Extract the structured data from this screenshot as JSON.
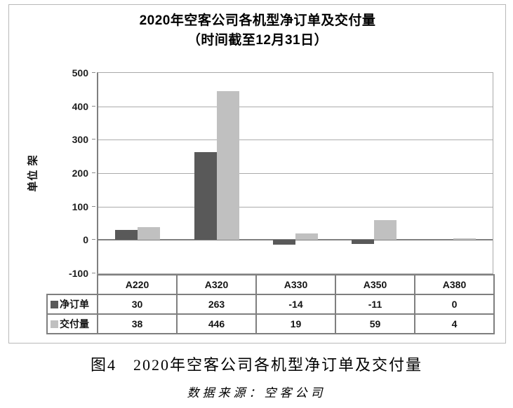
{
  "chart": {
    "title_line1": "2020年空客公司各机型净订单及交付量",
    "title_line2": "（时间截至12月31日）",
    "y_axis_label": "单位 架"
  },
  "chart_data": {
    "type": "bar",
    "categories": [
      "A220",
      "A320",
      "A330",
      "A350",
      "A380"
    ],
    "series": [
      {
        "key": "net-orders",
        "name": "净订单",
        "color": "#595959",
        "values": [
          30,
          263,
          -14,
          -11,
          0
        ]
      },
      {
        "key": "deliveries",
        "name": "交付量",
        "color": "#c0c0c0",
        "values": [
          38,
          446,
          19,
          59,
          4
        ]
      }
    ],
    "title": "2020年空客公司各机型净订单及交付量（时间截至12月31日）",
    "xlabel": "",
    "ylabel": "单位 架",
    "ylim": [
      -100,
      500
    ],
    "ytick_step": 100,
    "grid": true,
    "legend_position": "table-left"
  },
  "caption": {
    "figure": "图4　2020年空客公司各机型净订单及交付量",
    "source": "数据来源：空客公司"
  }
}
